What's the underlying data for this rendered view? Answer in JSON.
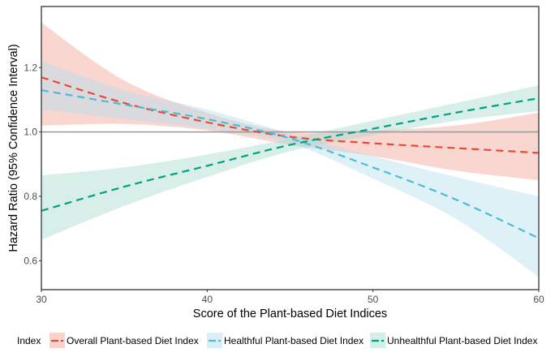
{
  "chart_data": {
    "type": "line",
    "title": "",
    "xlabel": "Score of the Plant-based Diet Indices",
    "ylabel": "Hazard Ratio (95% Confidence Interval)",
    "xlim": [
      30,
      60
    ],
    "ylim": [
      0.51,
      1.39
    ],
    "xticks": [
      30,
      40,
      50,
      60
    ],
    "xtick_labels": [
      "30",
      "40",
      "50",
      "60"
    ],
    "yticks": [
      0.6,
      0.8,
      1.0,
      1.2
    ],
    "ytick_labels": [
      "0.6",
      "0.8",
      "1.0",
      "1.2"
    ],
    "reference_line": {
      "y": 1.0,
      "color": "#999999"
    },
    "grid": false,
    "legend": {
      "title": "Index",
      "position": "bottom"
    },
    "x": [
      30,
      35,
      40,
      45,
      50,
      55,
      60
    ],
    "series": [
      {
        "name": "Overall Plant-based Diet Index",
        "color": "#E64B35",
        "fill": "#F4A59A",
        "values": [
          1.17,
          1.09,
          1.03,
          0.985,
          0.965,
          0.95,
          0.935
        ],
        "lower": [
          1.02,
          1.025,
          1.005,
          0.96,
          0.925,
          0.88,
          0.85
        ],
        "upper": [
          1.34,
          1.16,
          1.06,
          1.0,
          1.005,
          1.02,
          1.06
        ]
      },
      {
        "name": "Healthful Plant-based Diet Index",
        "color": "#4DBBD5",
        "fill": "#B3DFEE",
        "values": [
          1.13,
          1.085,
          1.04,
          0.98,
          0.89,
          0.79,
          0.67
        ],
        "lower": [
          1.07,
          1.04,
          1.01,
          0.965,
          0.855,
          0.73,
          0.55
        ],
        "upper": [
          1.22,
          1.13,
          1.07,
          0.995,
          0.925,
          0.86,
          0.8
        ]
      },
      {
        "name": "Unhealthful Plant-based Diet Index",
        "color": "#00A087",
        "fill": "#A8DCCF",
        "values": [
          0.755,
          0.83,
          0.895,
          0.96,
          1.01,
          1.06,
          1.105
        ],
        "lower": [
          0.665,
          0.77,
          0.86,
          0.94,
          0.99,
          1.035,
          1.065
        ],
        "upper": [
          0.865,
          0.89,
          0.93,
          0.98,
          1.035,
          1.09,
          1.145
        ]
      }
    ]
  }
}
